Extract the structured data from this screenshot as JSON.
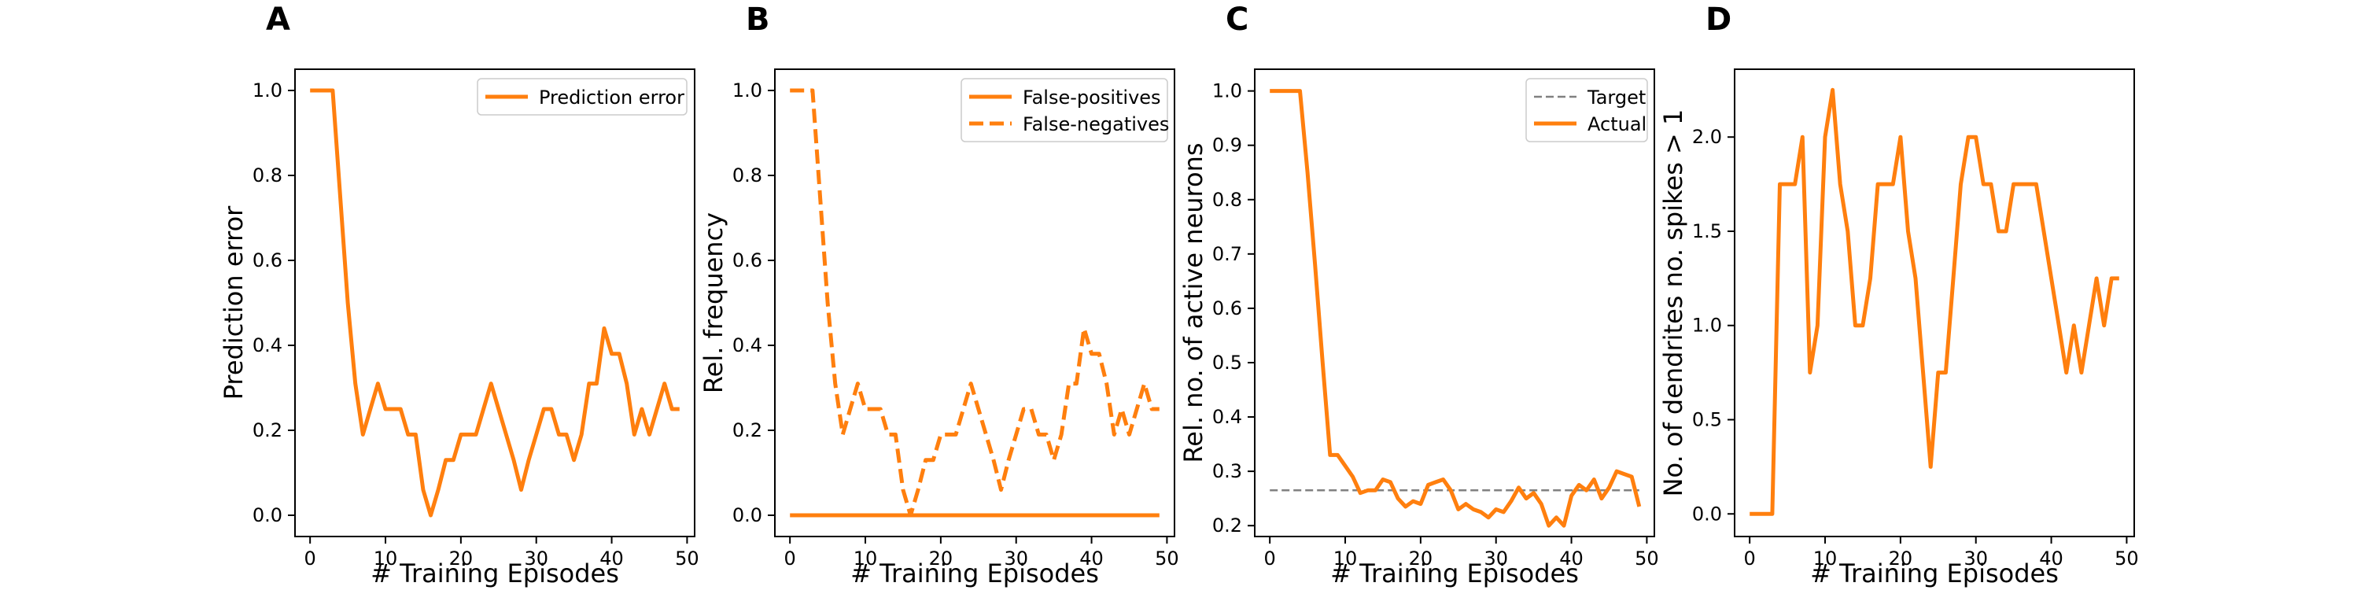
{
  "colors": {
    "series": "#ff7f0e",
    "target": "#808080"
  },
  "chart_data": [
    {
      "type": "line",
      "panel_label": "A",
      "xlabel": "# Training Episodes",
      "ylabel": "Prediction error",
      "xlim": [
        -2,
        51
      ],
      "ylim": [
        -0.05,
        1.05
      ],
      "xticks": [
        0,
        10,
        20,
        30,
        40,
        50
      ],
      "yticks": [
        0.0,
        0.2,
        0.4,
        0.6,
        0.8,
        1.0
      ],
      "ytick_labels": [
        "0.0",
        "0.2",
        "0.4",
        "0.6",
        "0.8",
        "1.0"
      ],
      "legend_position": "upper-right",
      "series": [
        {
          "name": "Prediction error",
          "style": "solid",
          "color": "#ff7f0e",
          "x": [
            0,
            1,
            2,
            3,
            4,
            5,
            6,
            7,
            8,
            9,
            10,
            11,
            12,
            13,
            14,
            15,
            16,
            17,
            18,
            19,
            20,
            21,
            22,
            23,
            24,
            25,
            26,
            27,
            28,
            29,
            30,
            31,
            32,
            33,
            34,
            35,
            36,
            37,
            38,
            39,
            40,
            41,
            42,
            43,
            44,
            45,
            46,
            47,
            48,
            49
          ],
          "y": [
            1.0,
            1.0,
            1.0,
            1.0,
            0.75,
            0.5,
            0.31,
            0.19,
            0.25,
            0.31,
            0.25,
            0.25,
            0.25,
            0.19,
            0.19,
            0.06,
            0.0,
            0.06,
            0.13,
            0.13,
            0.19,
            0.19,
            0.19,
            0.25,
            0.31,
            0.25,
            0.19,
            0.13,
            0.06,
            0.13,
            0.19,
            0.25,
            0.25,
            0.19,
            0.19,
            0.13,
            0.19,
            0.31,
            0.31,
            0.44,
            0.38,
            0.38,
            0.31,
            0.19,
            0.25,
            0.19,
            0.25,
            0.31,
            0.25,
            0.25
          ]
        }
      ]
    },
    {
      "type": "line",
      "panel_label": "B",
      "xlabel": "# Training Episodes",
      "ylabel": "Rel. frequency",
      "xlim": [
        -2,
        51
      ],
      "ylim": [
        -0.05,
        1.05
      ],
      "xticks": [
        0,
        10,
        20,
        30,
        40,
        50
      ],
      "yticks": [
        0.0,
        0.2,
        0.4,
        0.6,
        0.8,
        1.0
      ],
      "ytick_labels": [
        "0.0",
        "0.2",
        "0.4",
        "0.6",
        "0.8",
        "1.0"
      ],
      "legend_position": "upper-right",
      "series": [
        {
          "name": "False-positives",
          "style": "solid",
          "color": "#ff7f0e",
          "x": [
            0,
            49
          ],
          "y": [
            0.0,
            0.0
          ]
        },
        {
          "name": "False-negatives",
          "style": "dashed",
          "color": "#ff7f0e",
          "x": [
            0,
            1,
            2,
            3,
            4,
            5,
            6,
            7,
            8,
            9,
            10,
            11,
            12,
            13,
            14,
            15,
            16,
            17,
            18,
            19,
            20,
            21,
            22,
            23,
            24,
            25,
            26,
            27,
            28,
            29,
            30,
            31,
            32,
            33,
            34,
            35,
            36,
            37,
            38,
            39,
            40,
            41,
            42,
            43,
            44,
            45,
            46,
            47,
            48,
            49
          ],
          "y": [
            1.0,
            1.0,
            1.0,
            1.0,
            0.75,
            0.5,
            0.31,
            0.19,
            0.25,
            0.31,
            0.25,
            0.25,
            0.25,
            0.19,
            0.19,
            0.06,
            0.0,
            0.06,
            0.13,
            0.13,
            0.19,
            0.19,
            0.19,
            0.25,
            0.31,
            0.25,
            0.19,
            0.13,
            0.06,
            0.13,
            0.19,
            0.25,
            0.25,
            0.19,
            0.19,
            0.13,
            0.19,
            0.31,
            0.31,
            0.44,
            0.38,
            0.38,
            0.31,
            0.19,
            0.25,
            0.19,
            0.25,
            0.31,
            0.25,
            0.25
          ]
        }
      ]
    },
    {
      "type": "line",
      "panel_label": "C",
      "xlabel": "# Training Episodes",
      "ylabel": "Rel. no. of active neurons",
      "xlim": [
        -2,
        51
      ],
      "ylim": [
        0.18,
        1.04
      ],
      "xticks": [
        0,
        10,
        20,
        30,
        40,
        50
      ],
      "yticks": [
        0.2,
        0.3,
        0.4,
        0.5,
        0.6,
        0.7,
        0.8,
        0.9,
        1.0
      ],
      "ytick_labels": [
        "0.2",
        "0.3",
        "0.4",
        "0.5",
        "0.6",
        "0.7",
        "0.8",
        "0.9",
        "1.0"
      ],
      "legend_position": "upper-right",
      "series": [
        {
          "name": "Target",
          "style": "dashed-thin",
          "color": "#808080",
          "x": [
            0,
            49
          ],
          "y": [
            0.265,
            0.265
          ]
        },
        {
          "name": "Actual",
          "style": "solid",
          "color": "#ff7f0e",
          "x": [
            0,
            1,
            2,
            3,
            4,
            5,
            6,
            7,
            8,
            9,
            10,
            11,
            12,
            13,
            14,
            15,
            16,
            17,
            18,
            19,
            20,
            21,
            22,
            23,
            24,
            25,
            26,
            27,
            28,
            29,
            30,
            31,
            32,
            33,
            34,
            35,
            36,
            37,
            38,
            39,
            40,
            41,
            42,
            43,
            44,
            45,
            46,
            47,
            48,
            49
          ],
          "y": [
            1.0,
            1.0,
            1.0,
            1.0,
            1.0,
            0.85,
            0.68,
            0.5,
            0.33,
            0.33,
            0.31,
            0.29,
            0.26,
            0.265,
            0.265,
            0.285,
            0.28,
            0.25,
            0.235,
            0.245,
            0.24,
            0.275,
            0.28,
            0.285,
            0.265,
            0.23,
            0.24,
            0.23,
            0.225,
            0.215,
            0.23,
            0.225,
            0.245,
            0.27,
            0.25,
            0.26,
            0.24,
            0.2,
            0.215,
            0.2,
            0.255,
            0.275,
            0.265,
            0.285,
            0.25,
            0.27,
            0.3,
            0.295,
            0.29,
            0.235
          ]
        }
      ]
    },
    {
      "type": "line",
      "panel_label": "D",
      "xlabel": "# Training Episodes",
      "ylabel": "No. of dendrites no. spikes > 1",
      "xlim": [
        -2,
        51
      ],
      "ylim": [
        -0.12,
        2.36
      ],
      "xticks": [
        0,
        10,
        20,
        30,
        40,
        50
      ],
      "yticks": [
        0.0,
        0.5,
        1.0,
        1.5,
        2.0
      ],
      "ytick_labels": [
        "0.0",
        "0.5",
        "1.0",
        "1.5",
        "2.0"
      ],
      "series": [
        {
          "name": "",
          "style": "solid",
          "color": "#ff7f0e",
          "x": [
            0,
            1,
            2,
            3,
            4,
            5,
            6,
            7,
            8,
            9,
            10,
            11,
            12,
            13,
            14,
            15,
            16,
            17,
            18,
            19,
            20,
            21,
            22,
            23,
            24,
            25,
            26,
            27,
            28,
            29,
            30,
            31,
            32,
            33,
            34,
            35,
            36,
            37,
            38,
            39,
            40,
            41,
            42,
            43,
            44,
            45,
            46,
            47,
            48,
            49
          ],
          "y": [
            0.0,
            0.0,
            0.0,
            0.0,
            1.75,
            1.75,
            1.75,
            2.0,
            0.75,
            1.0,
            2.0,
            2.25,
            1.75,
            1.5,
            1.0,
            1.0,
            1.25,
            1.75,
            1.75,
            1.75,
            2.0,
            1.5,
            1.25,
            0.75,
            0.25,
            0.75,
            0.75,
            1.25,
            1.75,
            2.0,
            2.0,
            1.75,
            1.75,
            1.5,
            1.5,
            1.75,
            1.75,
            1.75,
            1.75,
            1.5,
            1.25,
            1.0,
            0.75,
            1.0,
            0.75,
            1.0,
            1.25,
            1.0,
            1.25,
            1.25
          ]
        }
      ]
    }
  ]
}
